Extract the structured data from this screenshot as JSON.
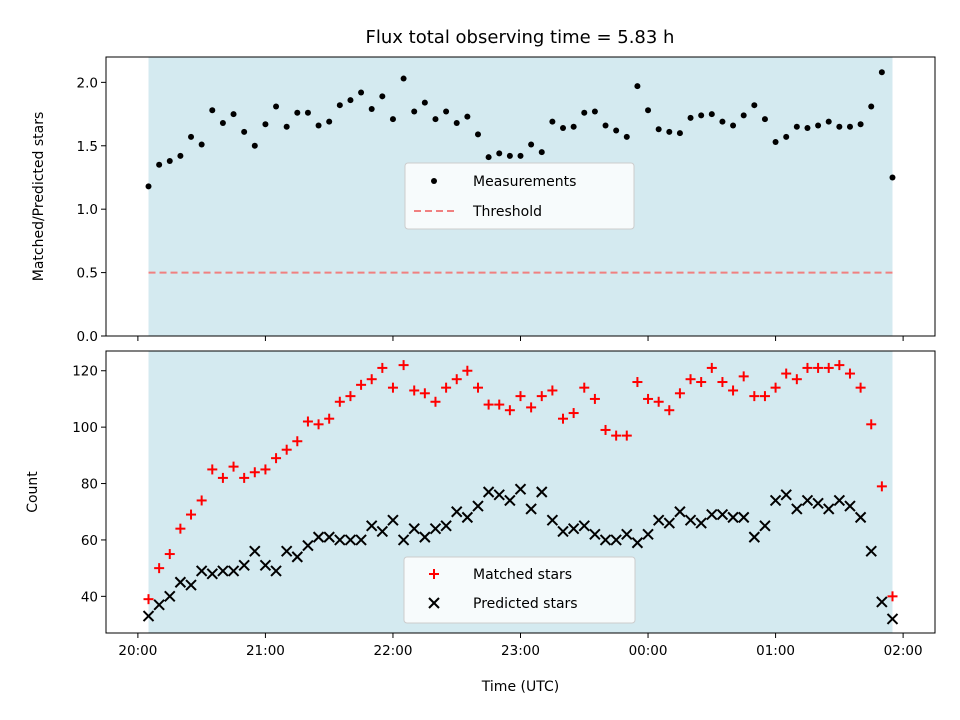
{
  "chart_data": [
    {
      "type": "scatter",
      "title": "Flux total observing time = 5.83 h",
      "ylabel": "Matched/Predicted stars",
      "xlabel": "",
      "ylim": [
        0.0,
        2.2
      ],
      "yticks": [
        0.0,
        0.5,
        1.0,
        1.5,
        2.0
      ],
      "ytick_labels": [
        "0.0",
        "0.5",
        "1.0",
        "1.5",
        "2.0"
      ],
      "x_time_range": [
        "19:45",
        "02:15"
      ],
      "shaded_span": [
        "20:05",
        "01:55"
      ],
      "shade_color": "#d4eaf0",
      "grid": false,
      "legend_position": "center",
      "series": [
        {
          "name": "Measurements",
          "color": "#000000",
          "marker": "dot",
          "x": [
            "20:05",
            "20:10",
            "20:15",
            "20:20",
            "20:25",
            "20:30",
            "20:35",
            "20:40",
            "20:45",
            "20:50",
            "20:55",
            "21:00",
            "21:05",
            "21:10",
            "21:15",
            "21:20",
            "21:25",
            "21:30",
            "21:35",
            "21:40",
            "21:45",
            "21:50",
            "21:55",
            "22:00",
            "22:05",
            "22:10",
            "22:15",
            "22:20",
            "22:25",
            "22:30",
            "22:35",
            "22:40",
            "22:45",
            "22:50",
            "22:55",
            "23:00",
            "23:05",
            "23:10",
            "23:15",
            "23:20",
            "23:25",
            "23:30",
            "23:35",
            "23:40",
            "23:45",
            "23:50",
            "23:55",
            "00:00",
            "00:05",
            "00:10",
            "00:15",
            "00:20",
            "00:25",
            "00:30",
            "00:35",
            "00:40",
            "00:45",
            "00:50",
            "00:55",
            "01:00",
            "01:05",
            "01:10",
            "01:15",
            "01:20",
            "01:25",
            "01:30",
            "01:35",
            "01:40",
            "01:45",
            "01:50",
            "01:55"
          ],
          "y": [
            1.18,
            1.35,
            1.38,
            1.42,
            1.57,
            1.51,
            1.78,
            1.68,
            1.75,
            1.61,
            1.5,
            1.67,
            1.81,
            1.65,
            1.76,
            1.76,
            1.66,
            1.69,
            1.82,
            1.86,
            1.92,
            1.79,
            1.89,
            1.71,
            2.03,
            1.77,
            1.84,
            1.71,
            1.77,
            1.68,
            1.73,
            1.59,
            1.41,
            1.44,
            1.42,
            1.42,
            1.51,
            1.45,
            1.69,
            1.64,
            1.65,
            1.76,
            1.77,
            1.66,
            1.62,
            1.57,
            1.97,
            1.78,
            1.63,
            1.61,
            1.6,
            1.72,
            1.74,
            1.75,
            1.69,
            1.66,
            1.74,
            1.82,
            1.71,
            1.53,
            1.57,
            1.65,
            1.64,
            1.66,
            1.69,
            1.65,
            1.65,
            1.67,
            1.81,
            2.08,
            1.25
          ]
        },
        {
          "name": "Threshold",
          "color": "#f08080",
          "style": "dashed",
          "x": [
            "20:05",
            "01:55"
          ],
          "y": [
            0.5,
            0.5
          ]
        }
      ]
    },
    {
      "type": "scatter",
      "title": "",
      "ylabel": "Count",
      "xlabel": "Time (UTC)",
      "ylim": [
        27,
        127
      ],
      "yticks": [
        40,
        60,
        80,
        100,
        120
      ],
      "ytick_labels": [
        "40",
        "60",
        "80",
        "100",
        "120"
      ],
      "x_time_range": [
        "19:45",
        "02:15"
      ],
      "xticks": [
        "20:00",
        "21:00",
        "22:00",
        "23:00",
        "00:00",
        "01:00",
        "02:00"
      ],
      "xtick_labels": [
        "20:00",
        "21:00",
        "22:00",
        "23:00",
        "00:00",
        "01:00",
        "02:00"
      ],
      "shaded_span": [
        "20:05",
        "01:55"
      ],
      "shade_color": "#d4eaf0",
      "grid": false,
      "legend_position": "bottom-center",
      "series": [
        {
          "name": "Matched stars",
          "color": "#ff0000",
          "marker": "plus",
          "x": [
            "20:05",
            "20:10",
            "20:15",
            "20:20",
            "20:25",
            "20:30",
            "20:35",
            "20:40",
            "20:45",
            "20:50",
            "20:55",
            "21:00",
            "21:05",
            "21:10",
            "21:15",
            "21:20",
            "21:25",
            "21:30",
            "21:35",
            "21:40",
            "21:45",
            "21:50",
            "21:55",
            "22:00",
            "22:05",
            "22:10",
            "22:15",
            "22:20",
            "22:25",
            "22:30",
            "22:35",
            "22:40",
            "22:45",
            "22:50",
            "22:55",
            "23:00",
            "23:05",
            "23:10",
            "23:15",
            "23:20",
            "23:25",
            "23:30",
            "23:35",
            "23:40",
            "23:45",
            "23:50",
            "23:55",
            "00:00",
            "00:05",
            "00:10",
            "00:15",
            "00:20",
            "00:25",
            "00:30",
            "00:35",
            "00:40",
            "00:45",
            "00:50",
            "00:55",
            "01:00",
            "01:05",
            "01:10",
            "01:15",
            "01:20",
            "01:25",
            "01:30",
            "01:35",
            "01:40",
            "01:45",
            "01:50",
            "01:55"
          ],
          "y": [
            39,
            50,
            55,
            64,
            69,
            74,
            85,
            82,
            86,
            82,
            84,
            85,
            89,
            92,
            95,
            102,
            101,
            103,
            109,
            111,
            115,
            117,
            121,
            114,
            122,
            113,
            112,
            109,
            114,
            117,
            120,
            114,
            108,
            108,
            106,
            111,
            107,
            111,
            113,
            103,
            105,
            114,
            110,
            99,
            97,
            97,
            116,
            110,
            109,
            106,
            112,
            117,
            116,
            121,
            116,
            113,
            118,
            111,
            111,
            114,
            119,
            117,
            121,
            121,
            121,
            122,
            119,
            114,
            101,
            79,
            40
          ]
        },
        {
          "name": "Predicted stars",
          "color": "#000000",
          "marker": "x",
          "x": [
            "20:05",
            "20:10",
            "20:15",
            "20:20",
            "20:25",
            "20:30",
            "20:35",
            "20:40",
            "20:45",
            "20:50",
            "20:55",
            "21:00",
            "21:05",
            "21:10",
            "21:15",
            "21:20",
            "21:25",
            "21:30",
            "21:35",
            "21:40",
            "21:45",
            "21:50",
            "21:55",
            "22:00",
            "22:05",
            "22:10",
            "22:15",
            "22:20",
            "22:25",
            "22:30",
            "22:35",
            "22:40",
            "22:45",
            "22:50",
            "22:55",
            "23:00",
            "23:05",
            "23:10",
            "23:15",
            "23:20",
            "23:25",
            "23:30",
            "23:35",
            "23:40",
            "23:45",
            "23:50",
            "23:55",
            "00:00",
            "00:05",
            "00:10",
            "00:15",
            "00:20",
            "00:25",
            "00:30",
            "00:35",
            "00:40",
            "00:45",
            "00:50",
            "00:55",
            "01:00",
            "01:05",
            "01:10",
            "01:15",
            "01:20",
            "01:25",
            "01:30",
            "01:35",
            "01:40",
            "01:45",
            "01:50",
            "01:55"
          ],
          "y": [
            33,
            37,
            40,
            45,
            44,
            49,
            48,
            49,
            49,
            51,
            56,
            51,
            49,
            56,
            54,
            58,
            61,
            61,
            60,
            60,
            60,
            65,
            63,
            67,
            60,
            64,
            61,
            64,
            65,
            70,
            68,
            72,
            77,
            76,
            74,
            78,
            71,
            77,
            67,
            63,
            64,
            65,
            62,
            60,
            60,
            62,
            59,
            62,
            67,
            66,
            70,
            67,
            66,
            69,
            69,
            68,
            68,
            61,
            65,
            74,
            76,
            71,
            74,
            73,
            71,
            74,
            72,
            68,
            56,
            38,
            32
          ]
        }
      ]
    }
  ]
}
